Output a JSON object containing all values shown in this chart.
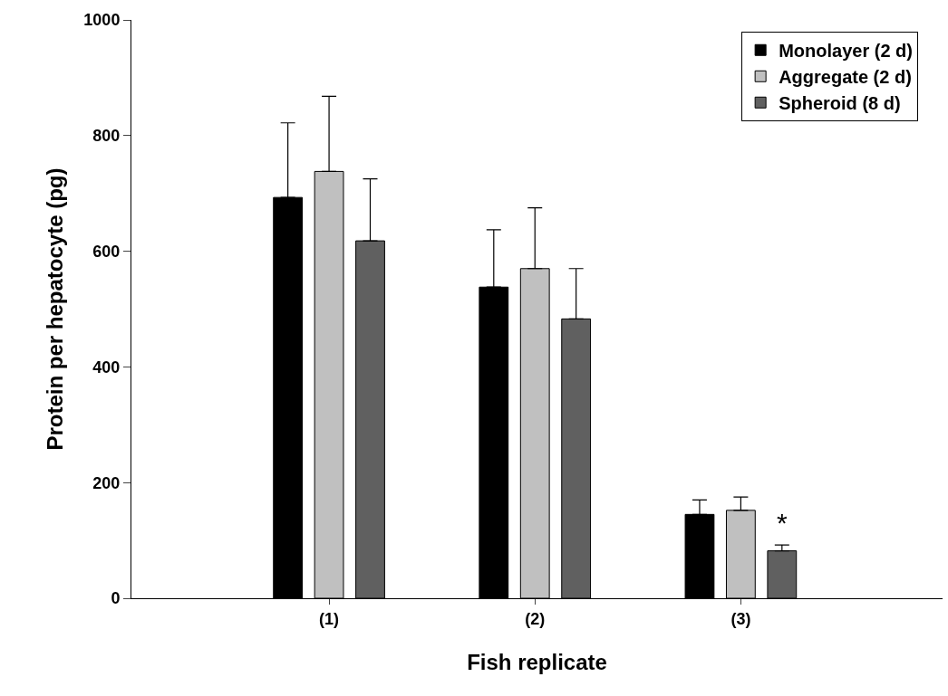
{
  "chart_data": {
    "type": "bar",
    "xlabel": "Fish replicate",
    "ylabel": "Protein per hepatocyte (pg)",
    "categories": [
      "(1)",
      "(2)",
      "(3)"
    ],
    "series": [
      {
        "name": "Monolayer (2 d)",
        "color": "#000000",
        "values": [
          693,
          538,
          145
        ],
        "errors": [
          [
            693,
            822
          ],
          [
            538,
            637
          ],
          [
            145,
            170
          ]
        ]
      },
      {
        "name": "Aggregate (2 d)",
        "color": "#c0c0c0",
        "values": [
          738,
          570,
          152
        ],
        "errors": [
          [
            738,
            868
          ],
          [
            570,
            675
          ],
          [
            152,
            175
          ]
        ]
      },
      {
        "name": "Spheroid (8 d)",
        "color": "#606060",
        "values": [
          618,
          483,
          82
        ],
        "errors": [
          [
            618,
            725
          ],
          [
            483,
            570
          ],
          [
            82,
            92
          ]
        ]
      }
    ],
    "annotations": [
      "*"
    ],
    "ylim": [
      0,
      1000
    ],
    "yticks": [
      0,
      200,
      400,
      600,
      800,
      1000
    ],
    "legend": "top right"
  }
}
